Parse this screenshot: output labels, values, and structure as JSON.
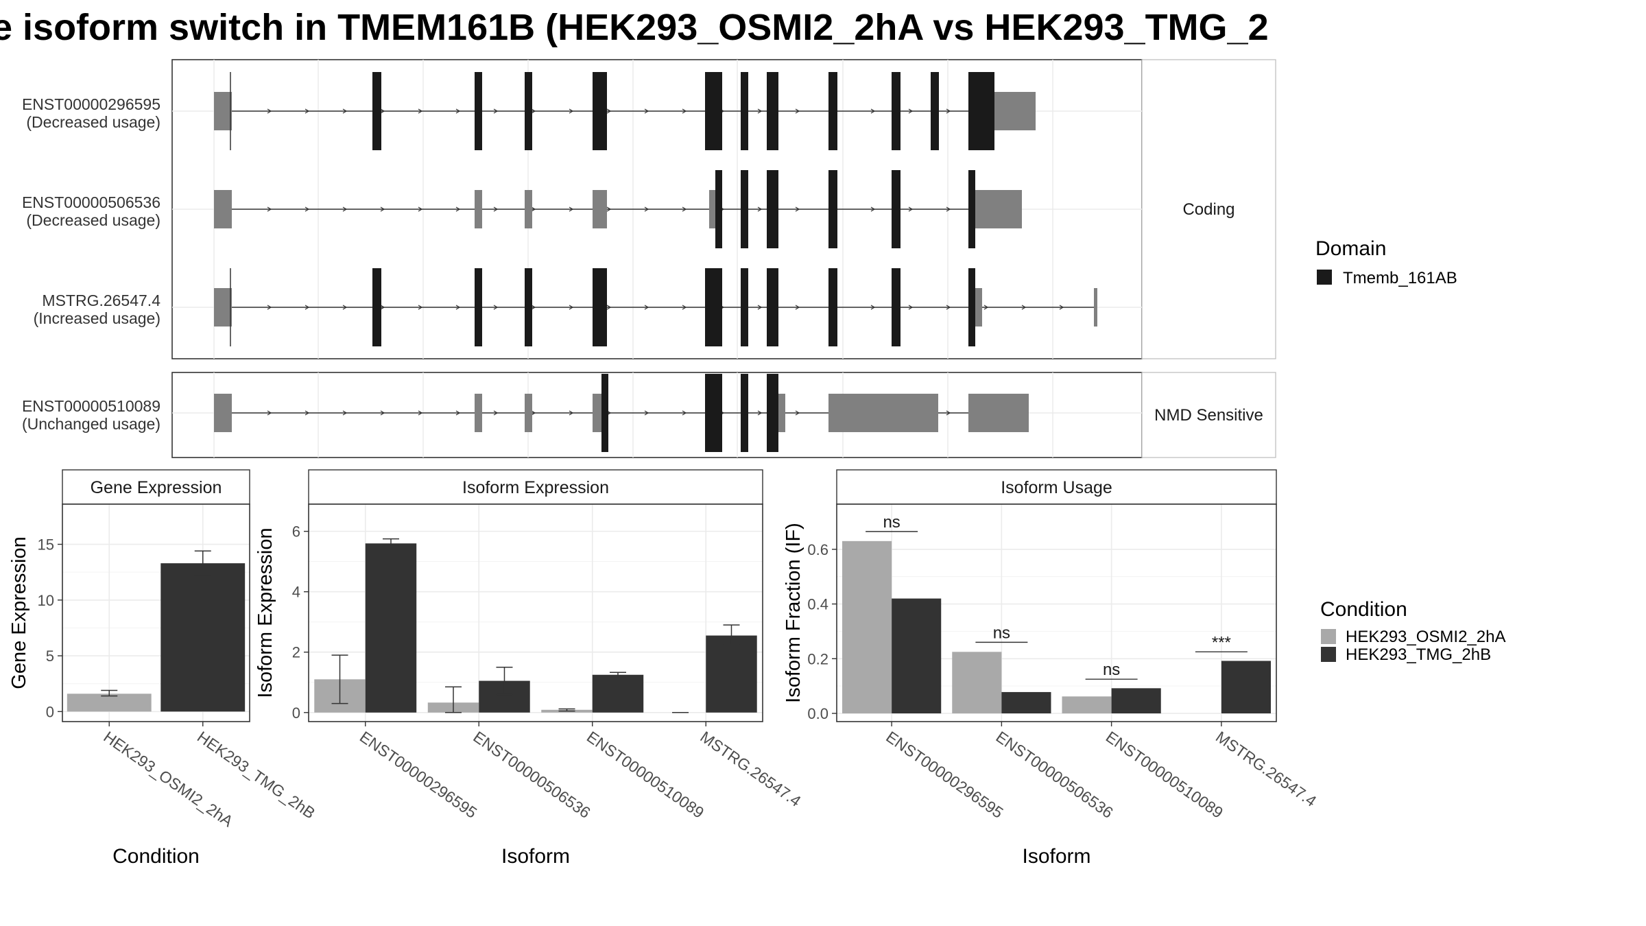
{
  "title": "e isoform switch in TMEM161B (HEK293_OSMI2_2hA vs HEK293_TMG_2",
  "colors": {
    "domain": "#1a1a1a",
    "utr": "#808080",
    "cond_a": "#a9a9a9",
    "cond_b": "#333333",
    "grid": "#ebebeb",
    "strip_bg": "#ffffff",
    "border": "#333333"
  },
  "isoform_panel": {
    "facets": [
      {
        "label": "Coding",
        "tracks": [
          {
            "id": "ENST00000296595",
            "usage": "(Decreased usage)"
          },
          {
            "id": "ENST00000506536",
            "usage": "(Decreased usage)"
          },
          {
            "id": "MSTRG.26547.4",
            "usage": "(Increased usage)"
          }
        ]
      },
      {
        "label": "NMD Sensitive",
        "tracks": [
          {
            "id": "ENST00000510089",
            "usage": "(Unchanged usage)"
          }
        ]
      }
    ]
  },
  "legend_domain": {
    "title": "Domain",
    "items": [
      {
        "label": "Tmemb_161AB",
        "color": "#1a1a1a"
      }
    ]
  },
  "legend_condition": {
    "title": "Condition",
    "items": [
      {
        "label": "HEK293_OSMI2_2hA",
        "color": "#a9a9a9"
      },
      {
        "label": "HEK293_TMG_2hB",
        "color": "#333333"
      }
    ]
  },
  "chart_data": [
    {
      "type": "bar",
      "title": "Gene Expression",
      "xlabel": "Condition",
      "ylabel": "Gene Expression",
      "categories": [
        "HEK293_OSMI2_2hA",
        "HEK293_TMG_2hB"
      ],
      "values": [
        1.6,
        13.3
      ],
      "errors": [
        [
          1.4,
          1.9
        ],
        [
          12.2,
          14.4
        ]
      ],
      "ylim": [
        -0.9,
        18.6
      ],
      "yticks": [
        0,
        5,
        10,
        15
      ]
    },
    {
      "type": "bar",
      "title": "Isoform Expression",
      "xlabel": "Isoform",
      "ylabel": "Isoform Expression",
      "categories": [
        "ENST00000296595",
        "ENST00000506536",
        "ENST00000510089",
        "MSTRG.26547.4"
      ],
      "series": [
        {
          "name": "HEK293_OSMI2_2hA",
          "values": [
            1.1,
            0.33,
            0.09,
            0.0
          ],
          "errors": [
            [
              0.3,
              1.9
            ],
            [
              0.0,
              0.85
            ],
            [
              0.05,
              0.12
            ],
            [
              0.0,
              0.0
            ]
          ]
        },
        {
          "name": "HEK293_TMG_2hB",
          "values": [
            5.6,
            1.05,
            1.25,
            2.55
          ],
          "errors": [
            [
              5.5,
              5.75
            ],
            [
              0.6,
              1.5
            ],
            [
              1.15,
              1.33
            ],
            [
              2.25,
              2.9
            ]
          ]
        }
      ],
      "ylim": [
        -0.3,
        6.9
      ],
      "yticks": [
        0,
        2,
        4,
        6
      ]
    },
    {
      "type": "bar",
      "title": "Isoform Usage",
      "xlabel": "Isoform",
      "ylabel": "Isoform Fraction (IF)",
      "categories": [
        "ENST00000296595",
        "ENST00000506536",
        "ENST00000510089",
        "MSTRG.26547.4"
      ],
      "series": [
        {
          "name": "HEK293_OSMI2_2hA",
          "values": [
            0.63,
            0.225,
            0.062,
            0.0
          ]
        },
        {
          "name": "HEK293_TMG_2hB",
          "values": [
            0.42,
            0.078,
            0.092,
            0.192
          ]
        }
      ],
      "significance": [
        "ns",
        "ns",
        "ns",
        "***"
      ],
      "significance_level": [
        0.665,
        0.26,
        0.125,
        0.225
      ],
      "ylim": [
        -0.03,
        0.765
      ],
      "yticks": [
        "0.0",
        "0.2",
        "0.4",
        "0.6"
      ]
    }
  ]
}
